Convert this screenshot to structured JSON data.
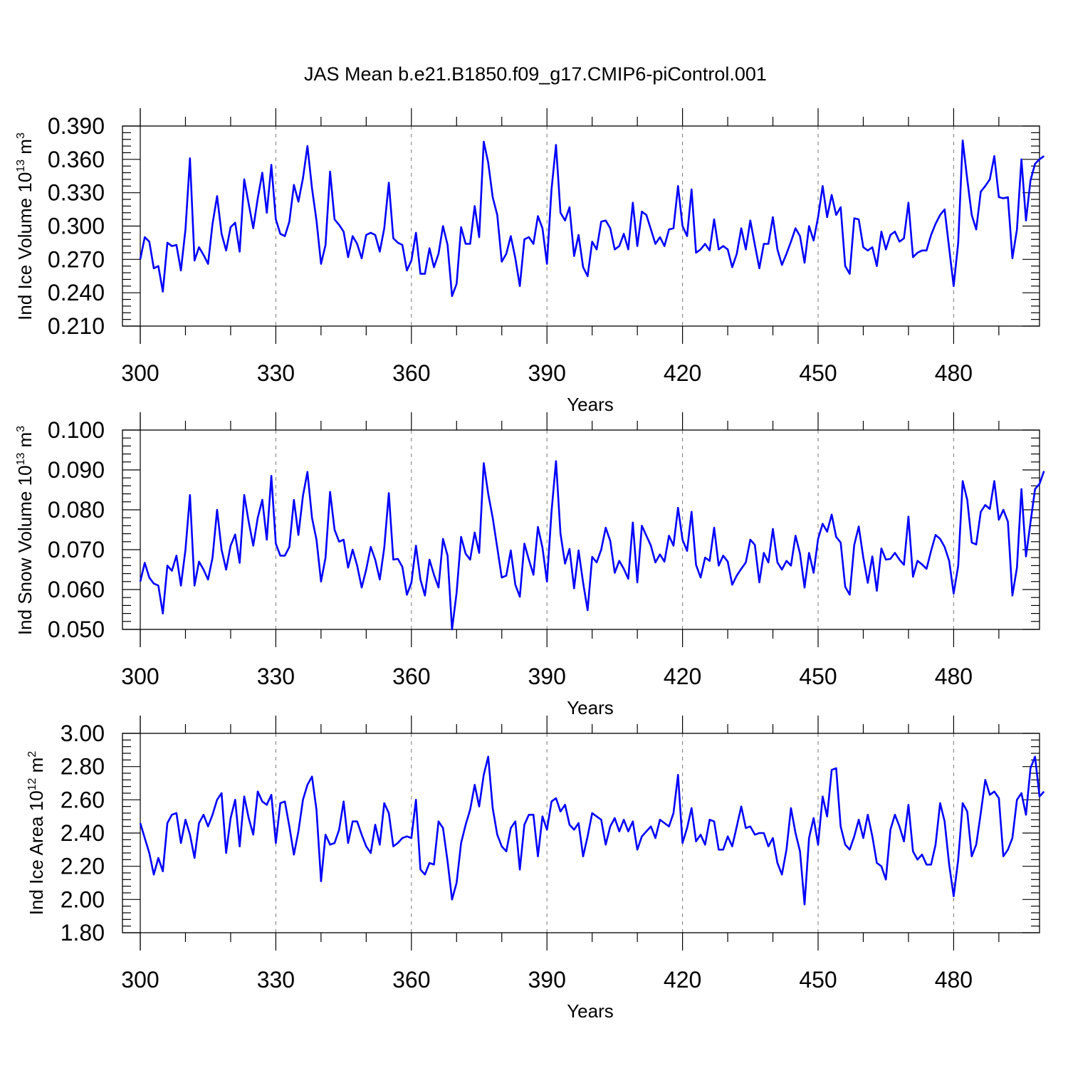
{
  "chart_data": {
    "title": "JAS Mean b.e21.B1850.f09_g17.CMIP6-piControl.001",
    "type": "line",
    "panels": [
      {
        "id": "ice-volume",
        "type": "line",
        "ylabel": "Ind Ice Volume 10",
        "ylabel_sup": "13",
        "ylabel_unit": "m",
        "ylabel_unit_sup": "3",
        "xlabel": "Years",
        "xlim": [
          300,
          499
        ],
        "ylim": [
          0.21,
          0.39
        ],
        "xticks": [
          300,
          330,
          360,
          390,
          420,
          450,
          480
        ],
        "xtick_labels": [
          "300",
          "330",
          "360",
          "390",
          "420",
          "450",
          "480"
        ],
        "yticks": [
          0.21,
          0.24,
          0.27,
          0.3,
          0.33,
          0.36,
          0.39
        ],
        "ytick_labels": [
          "0.210",
          "0.240",
          "0.270",
          "0.300",
          "0.330",
          "0.360",
          "0.390"
        ],
        "color": "#0000ff",
        "x_start": 300,
        "values": [
          0.27,
          0.29,
          0.286,
          0.262,
          0.264,
          0.241,
          0.285,
          0.282,
          0.283,
          0.26,
          0.297,
          0.361,
          0.269,
          0.281,
          0.274,
          0.266,
          0.302,
          0.327,
          0.293,
          0.278,
          0.299,
          0.303,
          0.277,
          0.342,
          0.32,
          0.298,
          0.325,
          0.348,
          0.312,
          0.355,
          0.306,
          0.293,
          0.291,
          0.304,
          0.337,
          0.322,
          0.343,
          0.372,
          0.334,
          0.305,
          0.266,
          0.283,
          0.349,
          0.306,
          0.301,
          0.295,
          0.272,
          0.291,
          0.284,
          0.271,
          0.292,
          0.294,
          0.292,
          0.277,
          0.298,
          0.339,
          0.289,
          0.285,
          0.283,
          0.26,
          0.269,
          0.294,
          0.257,
          0.257,
          0.28,
          0.263,
          0.275,
          0.3,
          0.283,
          0.237,
          0.248,
          0.299,
          0.284,
          0.284,
          0.318,
          0.29,
          0.376,
          0.357,
          0.326,
          0.31,
          0.268,
          0.275,
          0.291,
          0.271,
          0.246,
          0.288,
          0.29,
          0.284,
          0.309,
          0.298,
          0.266,
          0.333,
          0.373,
          0.312,
          0.305,
          0.317,
          0.273,
          0.292,
          0.263,
          0.255,
          0.286,
          0.279,
          0.304,
          0.305,
          0.298,
          0.279,
          0.282,
          0.293,
          0.279,
          0.321,
          0.282,
          0.313,
          0.31,
          0.297,
          0.284,
          0.29,
          0.282,
          0.297,
          0.298,
          0.336,
          0.3,
          0.291,
          0.333,
          0.276,
          0.279,
          0.284,
          0.278,
          0.306,
          0.279,
          0.282,
          0.279,
          0.263,
          0.275,
          0.298,
          0.279,
          0.305,
          0.283,
          0.262,
          0.284,
          0.284,
          0.308,
          0.279,
          0.265,
          0.275,
          0.286,
          0.298,
          0.291,
          0.267,
          0.3,
          0.287,
          0.308,
          0.336,
          0.308,
          0.328,
          0.31,
          0.317,
          0.264,
          0.257,
          0.307,
          0.306,
          0.281,
          0.278,
          0.281,
          0.264,
          0.295,
          0.279,
          0.292,
          0.295,
          0.286,
          0.289,
          0.321,
          0.272,
          0.276,
          0.278,
          0.278,
          0.292,
          0.302,
          0.31,
          0.315,
          0.28,
          0.246,
          0.285,
          0.377,
          0.342,
          0.31,
          0.297,
          0.331,
          0.336,
          0.342,
          0.363,
          0.326,
          0.325,
          0.326,
          0.271,
          0.297,
          0.36,
          0.305,
          0.341,
          0.356,
          0.36,
          0.363
        ]
      },
      {
        "id": "snow-volume",
        "type": "line",
        "ylabel": "Ind Snow Volume 10",
        "ylabel_sup": "13",
        "ylabel_unit": "m",
        "ylabel_unit_sup": "3",
        "xlabel": "Years",
        "xlim": [
          300,
          499
        ],
        "ylim": [
          0.05,
          0.1
        ],
        "xticks": [
          300,
          330,
          360,
          390,
          420,
          450,
          480
        ],
        "xtick_labels": [
          "300",
          "330",
          "360",
          "390",
          "420",
          "450",
          "480"
        ],
        "yticks": [
          0.05,
          0.06,
          0.07,
          0.08,
          0.09,
          0.1
        ],
        "ytick_labels": [
          "0.050",
          "0.060",
          "0.070",
          "0.080",
          "0.090",
          "0.100"
        ],
        "color": "#0000ff",
        "x_start": 300,
        "values": [
          0.062,
          0.0667,
          0.063,
          0.0615,
          0.061,
          0.054,
          0.066,
          0.0647,
          0.0685,
          0.061,
          0.07,
          0.0837,
          0.061,
          0.067,
          0.065,
          0.0625,
          0.068,
          0.08,
          0.07,
          0.065,
          0.071,
          0.0738,
          0.0667,
          0.0837,
          0.077,
          0.071,
          0.078,
          0.0825,
          0.0725,
          0.0885,
          0.0715,
          0.0685,
          0.0685,
          0.0707,
          0.0825,
          0.0737,
          0.0835,
          0.0895,
          0.078,
          0.0725,
          0.062,
          0.068,
          0.0845,
          0.075,
          0.072,
          0.0725,
          0.0655,
          0.07,
          0.066,
          0.0605,
          0.065,
          0.0707,
          0.0675,
          0.0625,
          0.0705,
          0.0842,
          0.0675,
          0.0677,
          0.0657,
          0.0587,
          0.0617,
          0.071,
          0.0625,
          0.0585,
          0.0675,
          0.0637,
          0.0605,
          0.0727,
          0.0685,
          0.05,
          0.0592,
          0.0732,
          0.069,
          0.0675,
          0.0743,
          0.0692,
          0.0917,
          0.084,
          0.078,
          0.0705,
          0.063,
          0.0635,
          0.0698,
          0.0612,
          0.0582,
          0.0715,
          0.0675,
          0.0637,
          0.0757,
          0.0705,
          0.062,
          0.0795,
          0.0922,
          0.074,
          0.0665,
          0.0702,
          0.0603,
          0.0698,
          0.0617,
          0.0548,
          0.0682,
          0.0668,
          0.07,
          0.0755,
          0.0722,
          0.0642,
          0.0672,
          0.0652,
          0.0627,
          0.0768,
          0.0618,
          0.076,
          0.0735,
          0.071,
          0.0668,
          0.0688,
          0.067,
          0.0735,
          0.071,
          0.0805,
          0.0725,
          0.0697,
          0.0795,
          0.0662,
          0.063,
          0.068,
          0.0672,
          0.0755,
          0.066,
          0.0685,
          0.067,
          0.0612,
          0.0635,
          0.0652,
          0.0668,
          0.0725,
          0.0712,
          0.0618,
          0.0692,
          0.0668,
          0.0752,
          0.0668,
          0.065,
          0.0672,
          0.066,
          0.0735,
          0.069,
          0.0605,
          0.0692,
          0.0642,
          0.0727,
          0.0765,
          0.0745,
          0.0788,
          0.0732,
          0.0718,
          0.0607,
          0.0587,
          0.0712,
          0.0758,
          0.068,
          0.0617,
          0.0683,
          0.0597,
          0.0703,
          0.0675,
          0.0677,
          0.0692,
          0.0675,
          0.0662,
          0.0783,
          0.0632,
          0.0672,
          0.0663,
          0.0652,
          0.0697,
          0.0737,
          0.0727,
          0.0707,
          0.0672,
          0.059,
          0.066,
          0.0872,
          0.0825,
          0.0718,
          0.0713,
          0.0795,
          0.0812,
          0.0802,
          0.0872,
          0.0775,
          0.08,
          0.077,
          0.0585,
          0.0655,
          0.0852,
          0.0683,
          0.0768,
          0.0852,
          0.0865,
          0.0897
        ]
      },
      {
        "id": "ice-area",
        "type": "line",
        "ylabel": "Ind Ice Area 10",
        "ylabel_sup": "12",
        "ylabel_unit": "m",
        "ylabel_unit_sup": "2",
        "xlabel": "Years",
        "xlim": [
          300,
          499
        ],
        "ylim": [
          1.8,
          3.0
        ],
        "xticks": [
          300,
          330,
          360,
          390,
          420,
          450,
          480
        ],
        "xtick_labels": [
          "300",
          "330",
          "360",
          "390",
          "420",
          "450",
          "480"
        ],
        "yticks": [
          1.8,
          2.0,
          2.2,
          2.4,
          2.6,
          2.8,
          3.0
        ],
        "ytick_labels": [
          "1.80",
          "2.00",
          "2.20",
          "2.40",
          "2.60",
          "2.80",
          "3.00"
        ],
        "color": "#0000ff",
        "x_start": 300,
        "values": [
          2.46,
          2.37,
          2.28,
          2.15,
          2.25,
          2.17,
          2.46,
          2.51,
          2.52,
          2.34,
          2.48,
          2.39,
          2.25,
          2.46,
          2.51,
          2.44,
          2.51,
          2.6,
          2.64,
          2.28,
          2.49,
          2.6,
          2.32,
          2.62,
          2.49,
          2.39,
          2.65,
          2.59,
          2.57,
          2.63,
          2.34,
          2.58,
          2.59,
          2.44,
          2.27,
          2.41,
          2.6,
          2.69,
          2.74,
          2.54,
          2.11,
          2.39,
          2.33,
          2.34,
          2.42,
          2.59,
          2.34,
          2.47,
          2.47,
          2.39,
          2.32,
          2.28,
          2.45,
          2.33,
          2.58,
          2.52,
          2.32,
          2.34,
          2.37,
          2.38,
          2.37,
          2.6,
          2.18,
          2.15,
          2.22,
          2.21,
          2.47,
          2.43,
          2.23,
          2.0,
          2.1,
          2.34,
          2.45,
          2.54,
          2.69,
          2.56,
          2.75,
          2.86,
          2.55,
          2.39,
          2.32,
          2.29,
          2.43,
          2.47,
          2.18,
          2.45,
          2.51,
          2.51,
          2.26,
          2.5,
          2.42,
          2.59,
          2.61,
          2.53,
          2.57,
          2.45,
          2.42,
          2.46,
          2.26,
          2.38,
          2.52,
          2.5,
          2.48,
          2.33,
          2.44,
          2.49,
          2.41,
          2.48,
          2.41,
          2.47,
          2.3,
          2.38,
          2.41,
          2.44,
          2.37,
          2.48,
          2.46,
          2.44,
          2.52,
          2.75,
          2.34,
          2.43,
          2.55,
          2.35,
          2.39,
          2.33,
          2.48,
          2.47,
          2.3,
          2.3,
          2.38,
          2.32,
          2.44,
          2.56,
          2.43,
          2.44,
          2.39,
          2.4,
          2.4,
          2.32,
          2.37,
          2.22,
          2.15,
          2.3,
          2.55,
          2.4,
          2.29,
          1.97,
          2.37,
          2.49,
          2.33,
          2.62,
          2.5,
          2.78,
          2.79,
          2.44,
          2.33,
          2.3,
          2.38,
          2.48,
          2.37,
          2.51,
          2.38,
          2.22,
          2.2,
          2.12,
          2.42,
          2.51,
          2.44,
          2.35,
          2.57,
          2.29,
          2.24,
          2.27,
          2.21,
          2.21,
          2.33,
          2.58,
          2.47,
          2.21,
          2.02,
          2.24,
          2.58,
          2.53,
          2.26,
          2.33,
          2.52,
          2.72,
          2.63,
          2.65,
          2.61,
          2.26,
          2.3,
          2.37,
          2.6,
          2.64,
          2.51,
          2.79,
          2.86,
          2.62,
          2.65
        ]
      }
    ]
  }
}
